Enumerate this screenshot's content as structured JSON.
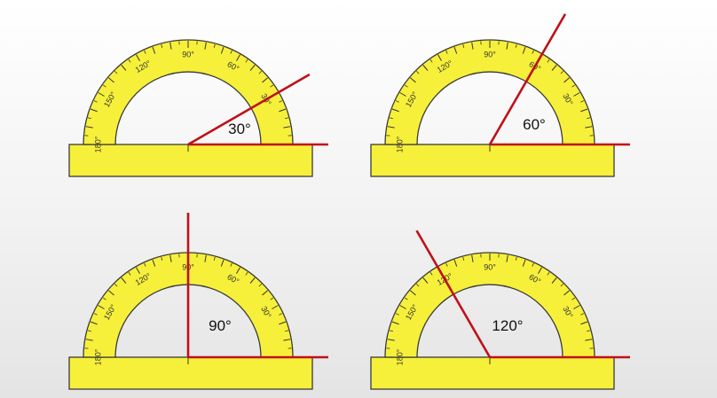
{
  "scale_labels": {
    "deg_180": "180°",
    "deg_150": "150°",
    "deg_120": "120°",
    "deg_90": "90°",
    "deg_60": "60°",
    "deg_30": "30°"
  },
  "panels": [
    {
      "angle": 30,
      "label": "30°"
    },
    {
      "angle": 60,
      "label": "60°"
    },
    {
      "angle": 90,
      "label": "90°"
    },
    {
      "angle": 120,
      "label": "120°"
    }
  ],
  "colors": {
    "protractor": "#f7f03a",
    "ray": "#c0101a",
    "outline": "#3a3a3a"
  }
}
